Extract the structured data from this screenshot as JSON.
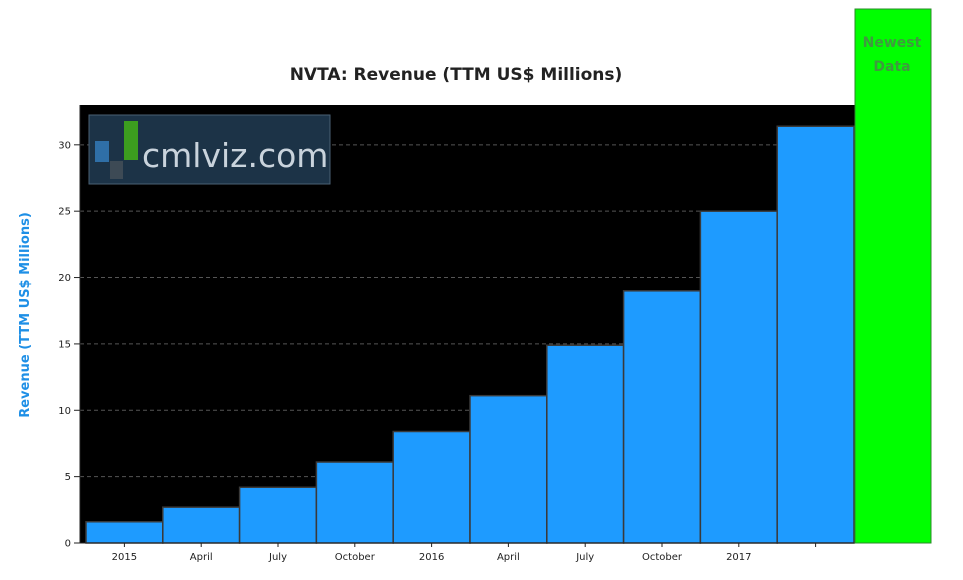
{
  "colors": {
    "plot_background": "#000000",
    "bar_fill": "#1e9bff",
    "bar_stroke": "#3a3a3a",
    "newest_panel": "#00ff00",
    "y_title": "#1e8fe6",
    "grid": "#555555",
    "logo_background": "#1c3347"
  },
  "logo": {
    "text": "cmlviz.com"
  },
  "newest_panel": {
    "line1": "Newest",
    "line2": "Data"
  },
  "chart_data": {
    "type": "bar",
    "title": "NVTA: Revenue (TTM US$ Millions)",
    "ylabel": "Revenue (TTM US$ Millions)",
    "xlabel": "",
    "ylim": [
      0,
      33
    ],
    "yticks": [
      0,
      5,
      10,
      15,
      20,
      25,
      30
    ],
    "grid": true,
    "xticks": [
      "2015",
      "April",
      "July",
      "October",
      "2016",
      "April",
      "July",
      "October",
      "2017"
    ],
    "values": [
      1.6,
      2.7,
      4.2,
      6.1,
      8.4,
      11.1,
      14.9,
      19.0,
      25.0,
      31.4
    ]
  }
}
